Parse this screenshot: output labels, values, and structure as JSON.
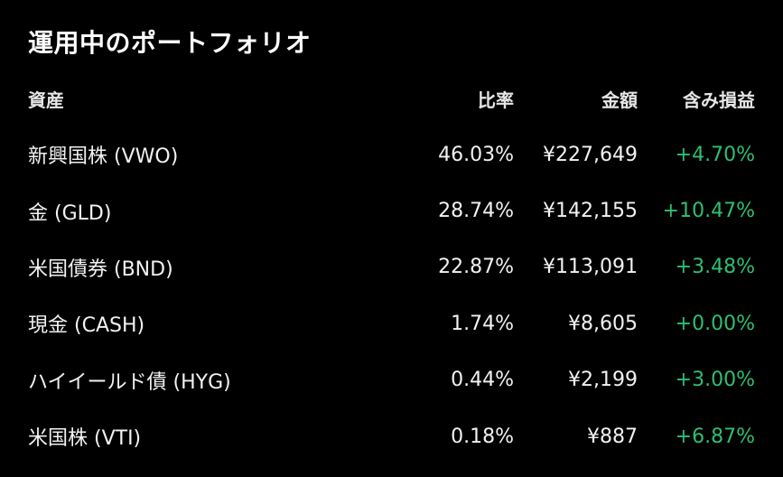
{
  "header": {
    "title": "運用中のポートフォリオ"
  },
  "table": {
    "columns": {
      "asset": "資産",
      "ratio": "比率",
      "amount": "金額",
      "unrealized_pl": "含み損益"
    },
    "rows": [
      {
        "asset": "新興国株 (VWO)",
        "ratio": "46.03%",
        "amount": "¥227,649",
        "pl": "+4.70%"
      },
      {
        "asset": "金 (GLD)",
        "ratio": "28.74%",
        "amount": "¥142,155",
        "pl": "+10.47%"
      },
      {
        "asset": "米国債券 (BND)",
        "ratio": "22.87%",
        "amount": "¥113,091",
        "pl": "+3.48%"
      },
      {
        "asset": "現金 (CASH)",
        "ratio": "1.74%",
        "amount": "¥8,605",
        "pl": "+0.00%"
      },
      {
        "asset": "ハイイールド債 (HYG)",
        "ratio": "0.44%",
        "amount": "¥2,199",
        "pl": "+3.00%"
      },
      {
        "asset": "米国株 (VTI)",
        "ratio": "0.18%",
        "amount": "¥887",
        "pl": "+6.87%"
      }
    ]
  },
  "colors": {
    "background": "#000000",
    "text": "#ffffff",
    "gain": "#2fbf71"
  }
}
